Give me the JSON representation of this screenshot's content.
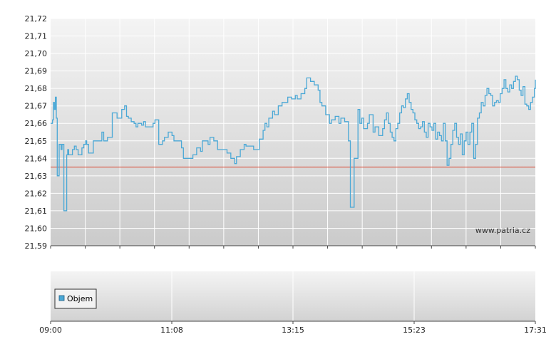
{
  "colors": {
    "price_line": "#4aa8d6",
    "reference_line": "#d9402b",
    "grid": "#ffffff",
    "plot_top": "#f4f4f4",
    "plot_bottom": "#cbcbcb",
    "legend_swatch": "#4aa8d6"
  },
  "watermark": "www.patria.cz",
  "legend": {
    "label": "Objem"
  },
  "chart_data": [
    {
      "type": "line",
      "title": "",
      "xlabel": "",
      "ylabel": "",
      "ylim": [
        21.59,
        21.72
      ],
      "xlim_minutes": [
        0,
        511
      ],
      "y_ticks": [
        "21,72",
        "21,71",
        "21,70",
        "21,69",
        "21,68",
        "21,67",
        "21,66",
        "21,65",
        "21,64",
        "21,63",
        "21,62",
        "21,61",
        "21,60",
        "21,59"
      ],
      "reference_value": 21.635,
      "grid": true,
      "series": [
        {
          "x_minutes": [
            0,
            2,
            3,
            4,
            5,
            6,
            7,
            9,
            11,
            12,
            14,
            16,
            17,
            18,
            19,
            21,
            23,
            25,
            27,
            29,
            31,
            33,
            35,
            37,
            38,
            40,
            42,
            45,
            48,
            50,
            54,
            56,
            60,
            65,
            70,
            75,
            78,
            80,
            82,
            85,
            88,
            90,
            92,
            94,
            96,
            98,
            100,
            104,
            108,
            110,
            114,
            118,
            120,
            124,
            128,
            130,
            134,
            138,
            140,
            144,
            148,
            150,
            154,
            158,
            160,
            164,
            166,
            168,
            172,
            176,
            180,
            184,
            186,
            190,
            194,
            196,
            200,
            204,
            206,
            210,
            214,
            216,
            220,
            224,
            226,
            228,
            230,
            234,
            236,
            240,
            244,
            248,
            250,
            254,
            258,
            260,
            264,
            268,
            270,
            274,
            278,
            282,
            284,
            286,
            290,
            294,
            296,
            300,
            304,
            306,
            310,
            314,
            316,
            320,
            324,
            326,
            328,
            330,
            334,
            336,
            340,
            342,
            346,
            350,
            352,
            354,
            356,
            358,
            360,
            362,
            364,
            366,
            368,
            370,
            372,
            374,
            376,
            378,
            380,
            382,
            384,
            386,
            388,
            390,
            392,
            394,
            396,
            398,
            400,
            402,
            404,
            406,
            408,
            410,
            412,
            414,
            416,
            418,
            420,
            422,
            424,
            426,
            428,
            430,
            432,
            434,
            436,
            438,
            440,
            442,
            444,
            446,
            448,
            450,
            452,
            454,
            456,
            458,
            460,
            462,
            464,
            466,
            468,
            470,
            472,
            474,
            476,
            478,
            480,
            482,
            484,
            486,
            488,
            490,
            492,
            494,
            496,
            498,
            500,
            502,
            504,
            506,
            508,
            510,
            511
          ],
          "values": [
            21.66,
            21.662,
            21.672,
            21.668,
            21.675,
            21.663,
            21.63,
            21.648,
            21.645,
            21.648,
            21.61,
            21.61,
            21.642,
            21.645,
            21.642,
            21.642,
            21.645,
            21.647,
            21.645,
            21.642,
            21.642,
            21.646,
            21.648,
            21.65,
            21.648,
            21.643,
            21.643,
            21.65,
            21.65,
            21.65,
            21.655,
            21.65,
            21.652,
            21.666,
            21.663,
            21.668,
            21.67,
            21.664,
            21.663,
            21.661,
            21.66,
            21.658,
            21.66,
            21.66,
            21.659,
            21.661,
            21.658,
            21.658,
            21.66,
            21.662,
            21.648,
            21.65,
            21.652,
            21.655,
            21.653,
            21.65,
            21.65,
            21.646,
            21.64,
            21.64,
            21.64,
            21.642,
            21.646,
            21.644,
            21.65,
            21.65,
            21.648,
            21.652,
            21.65,
            21.645,
            21.645,
            21.645,
            21.643,
            21.64,
            21.637,
            21.641,
            21.645,
            21.648,
            21.647,
            21.647,
            21.645,
            21.645,
            21.651,
            21.656,
            21.66,
            21.658,
            21.663,
            21.667,
            21.665,
            21.67,
            21.672,
            21.672,
            21.675,
            21.674,
            21.676,
            21.674,
            21.677,
            21.68,
            21.686,
            21.684,
            21.682,
            21.679,
            21.672,
            21.67,
            21.665,
            21.66,
            21.662,
            21.664,
            21.66,
            21.663,
            21.661,
            21.65,
            21.612,
            21.64,
            21.668,
            21.66,
            21.663,
            21.657,
            21.66,
            21.665,
            21.655,
            21.658,
            21.653,
            21.657,
            21.662,
            21.666,
            21.66,
            21.655,
            21.652,
            21.65,
            21.657,
            21.66,
            21.666,
            21.67,
            21.669,
            21.674,
            21.677,
            21.672,
            21.668,
            21.666,
            21.662,
            21.66,
            21.657,
            21.658,
            21.661,
            21.655,
            21.652,
            21.66,
            21.658,
            21.656,
            21.66,
            21.651,
            21.655,
            21.653,
            21.65,
            21.66,
            21.65,
            21.636,
            21.64,
            21.648,
            21.656,
            21.66,
            21.652,
            21.648,
            21.654,
            21.642,
            21.65,
            21.655,
            21.648,
            21.655,
            21.66,
            21.64,
            21.648,
            21.663,
            21.666,
            21.672,
            21.67,
            21.676,
            21.68,
            21.677,
            21.676,
            21.67,
            21.672,
            21.673,
            21.672,
            21.677,
            21.68,
            21.685,
            21.68,
            21.678,
            21.682,
            21.68,
            21.684,
            21.687,
            21.685,
            21.679,
            21.676,
            21.681,
            21.671,
            21.67,
            21.668,
            21.672,
            21.675,
            21.68,
            21.685
          ]
        }
      ]
    },
    {
      "type": "bar",
      "title": "",
      "series": [
        {
          "name": "Objem",
          "values": []
        }
      ]
    }
  ],
  "x_axis": {
    "tick_labels": [
      "09:00",
      "11:08",
      "13:15",
      "15:23",
      "17:31"
    ]
  }
}
